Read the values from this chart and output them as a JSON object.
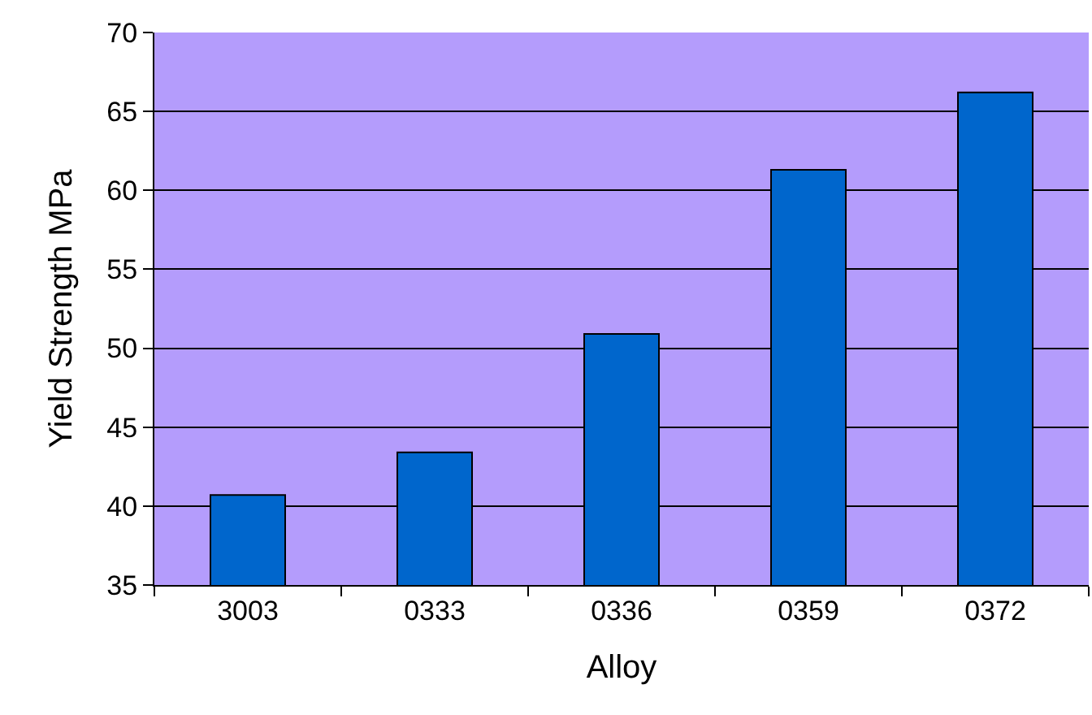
{
  "chart_data": {
    "type": "bar",
    "xlabel": "Alloy",
    "ylabel": "Yield Strength MPa",
    "categories": [
      "3003",
      "0333",
      "0336",
      "0359",
      "0372"
    ],
    "values": [
      40.7,
      43.4,
      50.9,
      61.3,
      66.2
    ],
    "color": "#0066cc",
    "ylim": [
      35,
      70
    ],
    "yticks": [
      35,
      40,
      45,
      50,
      55,
      60,
      65,
      70
    ],
    "grid": "y",
    "legend": false
  }
}
